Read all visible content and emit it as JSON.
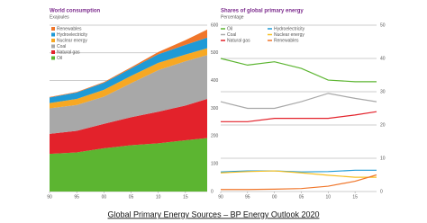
{
  "chart_data": [
    {
      "type": "stacked_area",
      "title": "World consumption",
      "subtitle": "Exajoules",
      "x": [
        1990,
        1995,
        2000,
        2005,
        2010,
        2015,
        2019
      ],
      "xlim": [
        1990,
        2019
      ],
      "xticks": [
        {
          "value": 1990,
          "label": "90"
        },
        {
          "value": 1995,
          "label": "95"
        },
        {
          "value": 2000,
          "label": "00"
        },
        {
          "value": 2005,
          "label": "05"
        },
        {
          "value": 2010,
          "label": "10"
        },
        {
          "value": 2015,
          "label": "15"
        }
      ],
      "ylim": [
        0,
        600
      ],
      "yticks": [
        0,
        100,
        200,
        300,
        400,
        500,
        600
      ],
      "grid": true,
      "legend": "top-left",
      "series": [
        {
          "name": "Oil",
          "color": "#5cb531",
          "values": [
            136,
            141,
            156,
            167,
            174,
            185,
            193
          ]
        },
        {
          "name": "Natural gas",
          "color": "#e3222b",
          "values": [
            72,
            78,
            88,
            101,
            114,
            125,
            141
          ]
        },
        {
          "name": "Coal",
          "color": "#a8a8a8",
          "values": [
            92,
            93,
            98,
            123,
            150,
            160,
            158
          ]
        },
        {
          "name": "Nuclear energy",
          "color": "#f7a823",
          "values": [
            19,
            22,
            25,
            26,
            26,
            24,
            25
          ]
        },
        {
          "name": "Hydroelectricity",
          "color": "#1f9ad6",
          "values": [
            20,
            23,
            25,
            27,
            31,
            35,
            38
          ]
        },
        {
          "name": "Renewables",
          "color": "#f0762a",
          "values": [
            2,
            2,
            3,
            4,
            8,
            17,
            29
          ]
        }
      ]
    },
    {
      "type": "line",
      "title": "Shares of global primary energy",
      "subtitle": "Percentage",
      "x": [
        1990,
        1995,
        2000,
        2005,
        2010,
        2015,
        2019
      ],
      "xlim": [
        1990,
        2019
      ],
      "xticks": [
        {
          "value": 1990,
          "label": "90"
        },
        {
          "value": 1995,
          "label": "95"
        },
        {
          "value": 2000,
          "label": "00"
        },
        {
          "value": 2005,
          "label": "05"
        },
        {
          "value": 2010,
          "label": "10"
        },
        {
          "value": 2015,
          "label": "15"
        }
      ],
      "ylim": [
        0,
        50
      ],
      "yticks": [
        0,
        10,
        20,
        30,
        40,
        50
      ],
      "grid": true,
      "legend": "top",
      "series": [
        {
          "name": "Oil",
          "color": "#5cb531",
          "values": [
            40,
            38,
            39,
            37,
            33.5,
            33,
            33
          ]
        },
        {
          "name": "Coal",
          "color": "#a8a8a8",
          "values": [
            27,
            25,
            25,
            27,
            29.5,
            28,
            27
          ]
        },
        {
          "name": "Natural gas",
          "color": "#e3222b",
          "values": [
            21,
            21,
            22,
            22,
            22,
            23,
            24
          ]
        },
        {
          "name": "Hydroelectricity",
          "color": "#1f9ad6",
          "values": [
            5.9,
            6.2,
            6.2,
            5.9,
            6,
            6.4,
            6.4
          ]
        },
        {
          "name": "Nuclear energy",
          "color": "#f7c023",
          "values": [
            5.6,
            6,
            6.2,
            5.6,
            4.9,
            4.3,
            4.3
          ]
        },
        {
          "name": "Renewables",
          "color": "#f0762a",
          "values": [
            0.6,
            0.6,
            0.7,
            0.9,
            1.6,
            3.1,
            5
          ]
        }
      ]
    }
  ],
  "caption": "Global Primary Energy Sources – BP Energy Outlook 2020"
}
